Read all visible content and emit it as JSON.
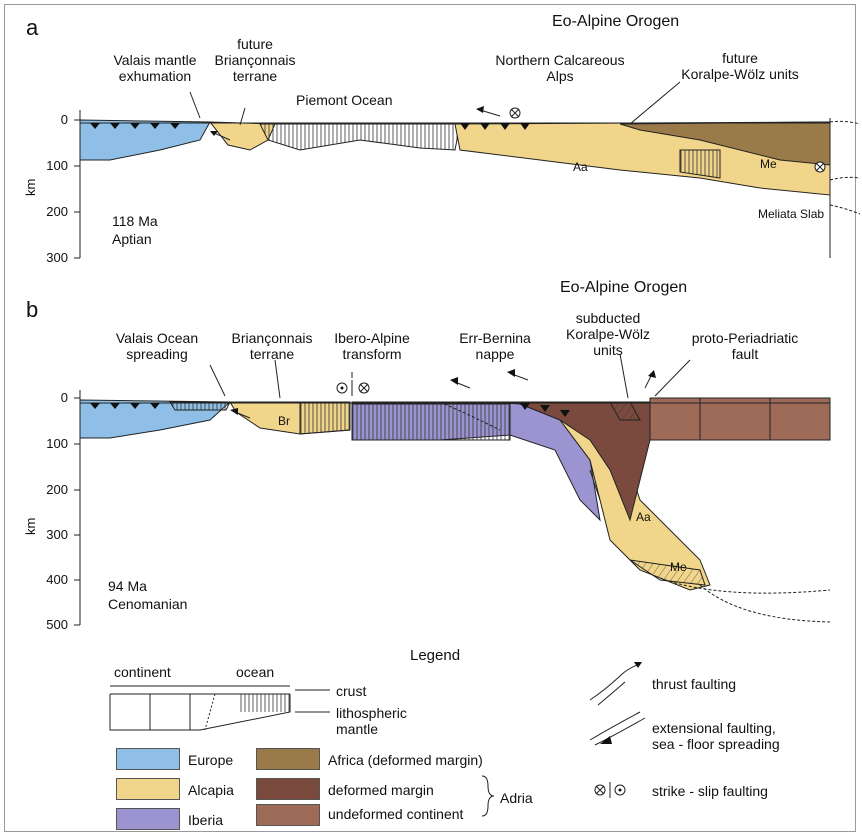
{
  "colors": {
    "europe": "#8fbfe6",
    "alcapia": "#f1d58a",
    "iberia": "#9b94d1",
    "africa": "#9b7a4a",
    "adria_deformed": "#7a4a3e",
    "adria_undeformed": "#9e6b58"
  },
  "panel_a": {
    "letter": "a",
    "orogen": "Eo-Alpine Orogen",
    "labels": {
      "valais": "Valais mantle\nexhumation",
      "brianconnais": "future\nBriançonnais\nterrane",
      "piemont": "Piemont Ocean",
      "calcareous": "Northern Calcareous\nAlps",
      "koralpe": "future\nKoralpe-Wölz units",
      "meliata": "Meliata Slab",
      "aa": "Aa",
      "me": "Me"
    },
    "age": "118 Ma",
    "stage": "Aptian",
    "axis_unit": "km",
    "ticks": [
      "0",
      "100",
      "200",
      "300"
    ]
  },
  "panel_b": {
    "letter": "b",
    "orogen": "Eo-Alpine Orogen",
    "labels": {
      "valais": "Valais Ocean\nspreading",
      "brianconnais": "Briançonnais\nterrane",
      "ibero": "Ibero-Alpine\ntransform",
      "err": "Err-Bernina\nnappe",
      "subducted": "subducted\nKoralpe-Wölz\nunits",
      "periadriatic": "proto-Periadriatic\nfault",
      "br": "Br",
      "aa": "Aa",
      "me": "Me"
    },
    "age": "94 Ma",
    "stage": "Cenomanian",
    "axis_unit": "km",
    "ticks": [
      "0",
      "100",
      "200",
      "300",
      "400",
      "500"
    ]
  },
  "legend": {
    "title": "Legend",
    "continent": "continent",
    "ocean": "ocean",
    "crust": "crust",
    "mantle": "lithospheric\nmantle",
    "europe": "Europe",
    "alcapia": "Alcapia",
    "iberia": "Iberia",
    "africa": "Africa (deformed margin)",
    "deformed": "deformed margin",
    "undeformed": "undeformed continent",
    "adria": "Adria",
    "thrust": "thrust faulting",
    "extensional": "extensional faulting,\nsea - floor spreading",
    "strike": "strike - slip faulting"
  }
}
